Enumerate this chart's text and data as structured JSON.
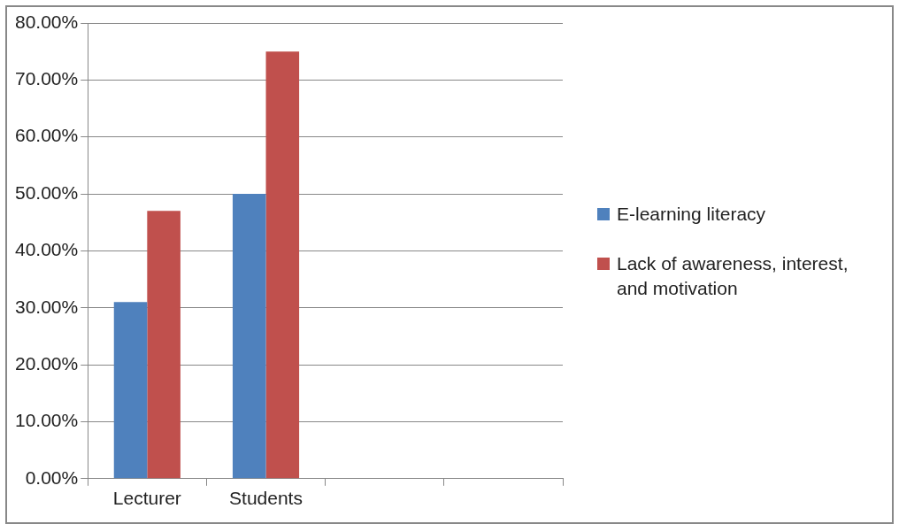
{
  "chart_data": {
    "type": "bar",
    "categories": [
      "Lecturer",
      "Students",
      null,
      null
    ],
    "series": [
      {
        "name": "E-learning literacy",
        "color": "#4f81bd",
        "values": [
          31,
          50,
          null,
          null
        ]
      },
      {
        "name": "Lack of awareness, interest, and motivation",
        "color": "#c0504d",
        "values": [
          47,
          75,
          null,
          null
        ]
      }
    ],
    "ylim": [
      0,
      80
    ],
    "yticks": [
      {
        "value": 0,
        "label": "0.00%"
      },
      {
        "value": 10,
        "label": "10.00%"
      },
      {
        "value": 20,
        "label": "20.00%"
      },
      {
        "value": 30,
        "label": "30.00%"
      },
      {
        "value": 40,
        "label": "40.00%"
      },
      {
        "value": 50,
        "label": "50.00%"
      },
      {
        "value": 60,
        "label": "60.00%"
      },
      {
        "value": 70,
        "label": "70.00%"
      },
      {
        "value": 80,
        "label": "80.00%"
      }
    ],
    "grid": "y",
    "legend": "right"
  }
}
